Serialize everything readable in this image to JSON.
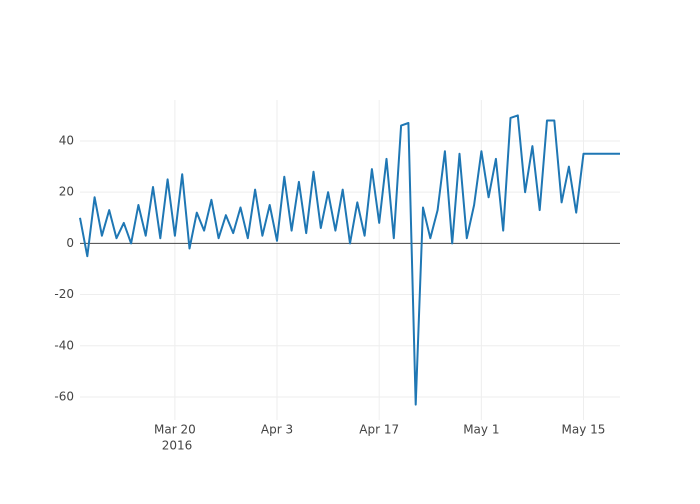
{
  "chart_data": {
    "type": "line",
    "xaxis_year_label": "2016",
    "x": [
      "2016-03-07",
      "2016-03-08",
      "2016-03-09",
      "2016-03-10",
      "2016-03-11",
      "2016-03-12",
      "2016-03-13",
      "2016-03-14",
      "2016-03-15",
      "2016-03-16",
      "2016-03-17",
      "2016-03-18",
      "2016-03-19",
      "2016-03-20",
      "2016-03-21",
      "2016-03-22",
      "2016-03-23",
      "2016-03-24",
      "2016-03-25",
      "2016-03-26",
      "2016-03-27",
      "2016-03-28",
      "2016-03-29",
      "2016-03-30",
      "2016-03-31",
      "2016-04-01",
      "2016-04-02",
      "2016-04-03",
      "2016-04-04",
      "2016-04-05",
      "2016-04-06",
      "2016-04-07",
      "2016-04-08",
      "2016-04-09",
      "2016-04-10",
      "2016-04-11",
      "2016-04-12",
      "2016-04-13",
      "2016-04-14",
      "2016-04-15",
      "2016-04-16",
      "2016-04-17",
      "2016-04-18",
      "2016-04-19",
      "2016-04-20",
      "2016-04-21",
      "2016-04-22",
      "2016-04-23",
      "2016-04-24",
      "2016-04-25",
      "2016-04-26",
      "2016-04-27",
      "2016-04-28",
      "2016-04-29",
      "2016-04-30",
      "2016-05-01",
      "2016-05-02",
      "2016-05-03",
      "2016-05-04",
      "2016-05-05",
      "2016-05-06",
      "2016-05-07",
      "2016-05-08",
      "2016-05-09",
      "2016-05-10",
      "2016-05-11",
      "2016-05-12",
      "2016-05-13",
      "2016-05-14",
      "2016-05-15",
      "2016-05-16",
      "2016-05-17",
      "2016-05-18",
      "2016-05-19",
      "2016-05-20"
    ],
    "series": [
      {
        "color": "#1f77b4",
        "values": [
          10,
          -5,
          18,
          3,
          13,
          2,
          8,
          0,
          15,
          3,
          22,
          2,
          25,
          3,
          27,
          -2,
          12,
          5,
          17,
          2,
          11,
          4,
          14,
          2,
          21,
          3,
          15,
          1,
          26,
          5,
          24,
          4,
          28,
          6,
          20,
          5,
          21,
          0,
          16,
          3,
          29,
          8,
          33,
          2,
          46,
          47,
          -63,
          14,
          2,
          13,
          36,
          0,
          35,
          2,
          15,
          36,
          18,
          33,
          5,
          49,
          50,
          20,
          38,
          13,
          48,
          48,
          16,
          30,
          12,
          35,
          35,
          35,
          35,
          35,
          35
        ]
      }
    ],
    "xlim": [
      "2016-03-07",
      "2016-05-20"
    ],
    "xticks": [
      {
        "value": "2016-03-20",
        "label": "Mar 20"
      },
      {
        "value": "2016-04-03",
        "label": "Apr 3"
      },
      {
        "value": "2016-04-17",
        "label": "Apr 17"
      },
      {
        "value": "2016-05-01",
        "label": "May 1"
      },
      {
        "value": "2016-05-15",
        "label": "May 15"
      }
    ],
    "ylim": [
      -69,
      56
    ],
    "yticks": [
      -60,
      -40,
      -20,
      0,
      20,
      40
    ],
    "grid": true
  }
}
